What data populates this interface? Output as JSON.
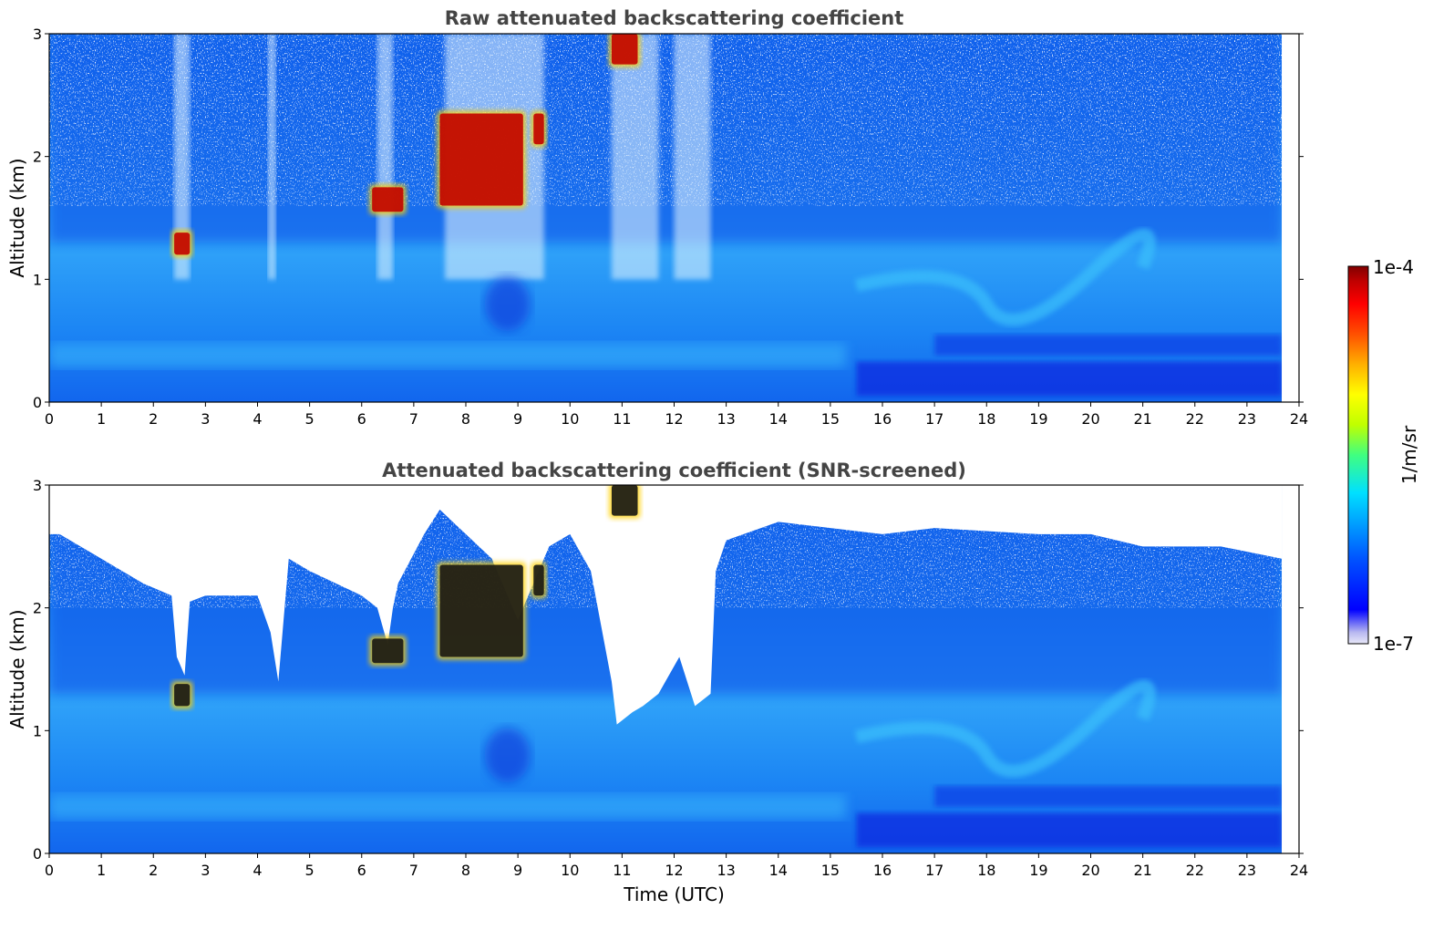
{
  "chart_data": [
    {
      "type": "heatmap",
      "title": "Raw attenuated backscattering coefficient",
      "xlabel": "",
      "ylabel": "Altitude (km)",
      "xlim": [
        0,
        24
      ],
      "ylim": [
        0,
        3
      ],
      "xticks": [
        "0",
        "1",
        "2",
        "3",
        "4",
        "5",
        "6",
        "7",
        "8",
        "9",
        "10",
        "11",
        "12",
        "13",
        "14",
        "15",
        "16",
        "17",
        "18",
        "19",
        "20",
        "21",
        "22",
        "23",
        "24"
      ],
      "yticks": [
        "0",
        "1",
        "2",
        "3"
      ],
      "data_end_x": 23.67,
      "features": [
        {
          "kind": "cloud",
          "x": [
            2.4,
            2.7
          ],
          "y": [
            1.2,
            1.38
          ]
        },
        {
          "kind": "cloud",
          "x": [
            6.2,
            6.8
          ],
          "y": [
            1.55,
            1.75
          ]
        },
        {
          "kind": "cloud",
          "x": [
            7.5,
            9.1
          ],
          "y": [
            1.6,
            2.35
          ]
        },
        {
          "kind": "cloud",
          "x": [
            9.3,
            9.5
          ],
          "y": [
            2.1,
            2.35
          ]
        },
        {
          "kind": "cloud",
          "x": [
            10.8,
            11.3
          ],
          "y": [
            2.75,
            3.0
          ]
        }
      ]
    },
    {
      "type": "heatmap",
      "title": "Attenuated backscattering coefficient (SNR-screened)",
      "xlabel": "Time (UTC)",
      "ylabel": "Altitude (km)",
      "xlim": [
        0,
        24
      ],
      "ylim": [
        0,
        3
      ],
      "xticks": [
        "0",
        "1",
        "2",
        "3",
        "4",
        "5",
        "6",
        "7",
        "8",
        "9",
        "10",
        "11",
        "12",
        "13",
        "14",
        "15",
        "16",
        "17",
        "18",
        "19",
        "20",
        "21",
        "22",
        "23",
        "24"
      ],
      "yticks": [
        "0",
        "1",
        "2",
        "3"
      ],
      "data_end_x": 23.67,
      "features": [
        {
          "kind": "cloud",
          "x": [
            2.4,
            2.7
          ],
          "y": [
            1.2,
            1.38
          ]
        },
        {
          "kind": "cloud",
          "x": [
            6.2,
            6.8
          ],
          "y": [
            1.55,
            1.75
          ]
        },
        {
          "kind": "cloud",
          "x": [
            7.5,
            9.1
          ],
          "y": [
            1.6,
            2.35
          ]
        },
        {
          "kind": "cloud",
          "x": [
            9.3,
            9.5
          ],
          "y": [
            2.1,
            2.35
          ]
        },
        {
          "kind": "cloud",
          "x": [
            10.8,
            11.3
          ],
          "y": [
            2.75,
            3.0
          ]
        }
      ]
    }
  ],
  "colorbar": {
    "label": "1/m/sr",
    "max_label": "1e-4",
    "min_label": "1e-7",
    "colormap": [
      "#e8e8f8",
      "#b8b8f0",
      "#0000ff",
      "#0050ff",
      "#00a0ff",
      "#00e0ff",
      "#40ff80",
      "#c0ff00",
      "#ffff00",
      "#ffb000",
      "#ff5000",
      "#ff0000",
      "#c00000",
      "#800000"
    ]
  }
}
